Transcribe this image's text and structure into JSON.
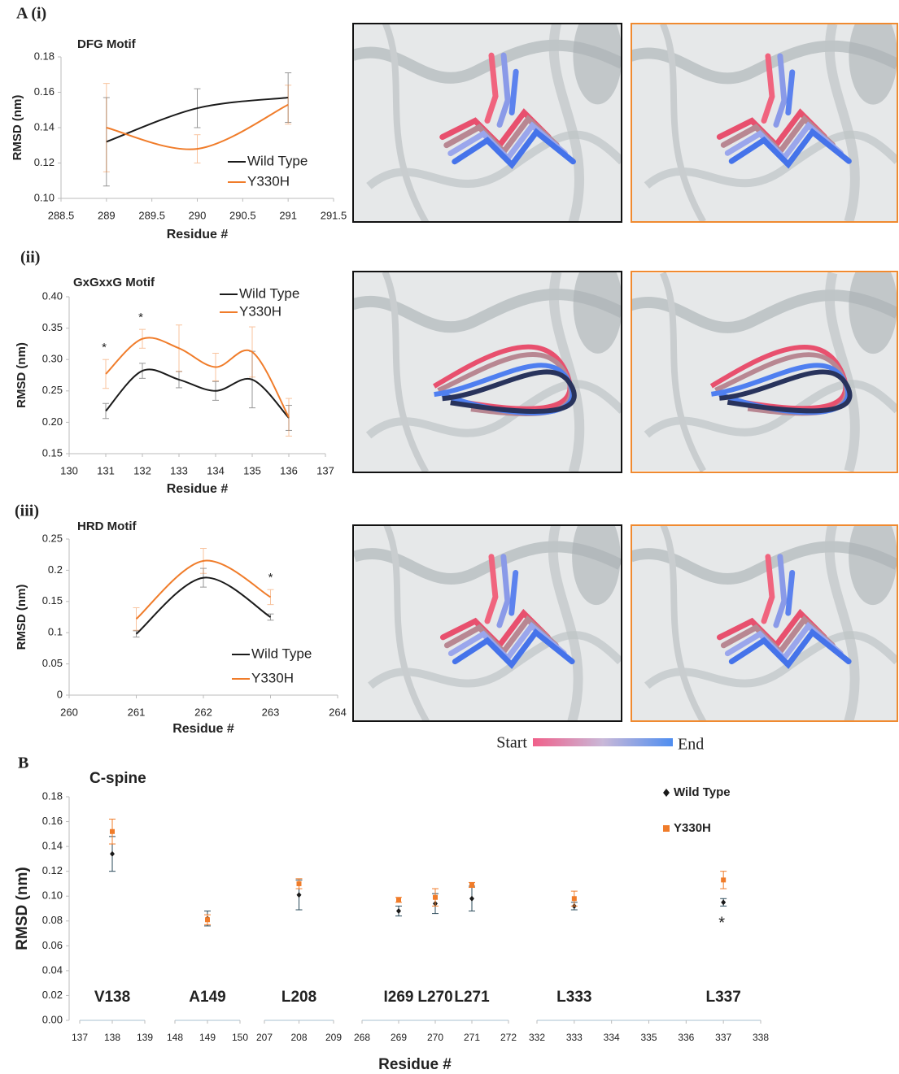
{
  "panel_labels": [
    "A (i)",
    "(ii)",
    "(iii)",
    "B"
  ],
  "colorbar": {
    "start": "Start",
    "end": "End"
  },
  "chart_data": [
    {
      "type": "line",
      "title": "DFG Motif",
      "x_label": "Residue #",
      "y_label": "RMSD (nm)",
      "xlim": [
        288.5,
        291.5
      ],
      "xticks": [
        288.5,
        289,
        289.5,
        290,
        290.5,
        291,
        291.5
      ],
      "ylim": [
        0.1,
        0.18
      ],
      "yticks": [
        {
          "value": 0.1,
          "label": "0.10"
        },
        {
          "value": 0.12,
          "label": "0.12"
        },
        {
          "value": 0.14,
          "label": "0.14"
        },
        {
          "value": 0.16,
          "label": "0.16"
        },
        {
          "value": 0.18,
          "label": "0.18"
        }
      ],
      "x": [
        289,
        290,
        291
      ],
      "legend": "lower right",
      "series": [
        {
          "name": "Wild Type",
          "color": "#1a1a1a",
          "values": [
            0.132,
            0.151,
            0.157
          ],
          "error": [
            0.025,
            0.011,
            0.014
          ]
        },
        {
          "name": "Y330H",
          "color": "#f07c2a",
          "values": [
            0.14,
            0.128,
            0.153
          ],
          "error": [
            0.025,
            0.008,
            0.011
          ]
        }
      ],
      "annotations": []
    },
    {
      "type": "line",
      "title": "GxGxxG Motif",
      "x_label": "Residue #",
      "y_label": "RMSD (nm)",
      "xlim": [
        130,
        137
      ],
      "xticks": [
        130,
        131,
        132,
        133,
        134,
        135,
        136,
        137
      ],
      "ylim": [
        0.15,
        0.4
      ],
      "yticks": [
        0.15,
        {
          "value": 0.2,
          "label": "0.20"
        },
        0.25,
        {
          "value": 0.3,
          "label": "0.30"
        },
        0.35,
        {
          "value": 0.4,
          "label": "0.40"
        }
      ],
      "x": [
        131,
        132,
        133,
        134,
        135,
        136
      ],
      "legend": "upper right",
      "series": [
        {
          "name": "Wild Type",
          "color": "#1a1a1a",
          "values": [
            0.218,
            0.282,
            0.268,
            0.25,
            0.268,
            0.207
          ],
          "error": [
            0.012,
            0.012,
            0.013,
            0.015,
            0.045,
            0.02
          ]
        },
        {
          "name": "Y330H",
          "color": "#f07c2a",
          "values": [
            0.277,
            0.333,
            0.318,
            0.288,
            0.312,
            0.208
          ],
          "error": [
            0.023,
            0.015,
            0.037,
            0.022,
            0.04,
            0.03
          ]
        }
      ],
      "annotations": [
        {
          "text": "*",
          "x": 131
        },
        {
          "text": "*",
          "x": 132
        }
      ]
    },
    {
      "type": "line",
      "title": "HRD Motif",
      "x_label": "Residue #",
      "y_label": "RMSD (nm)",
      "xlim": [
        260,
        264
      ],
      "xticks": [
        260,
        261,
        262,
        263,
        264
      ],
      "ylim": [
        0,
        0.25
      ],
      "yticks": [
        0,
        0.05,
        0.1,
        0.15,
        0.2,
        0.25
      ],
      "x": [
        261,
        262,
        263
      ],
      "legend": "lower right",
      "series": [
        {
          "name": "Wild Type",
          "color": "#1a1a1a",
          "values": [
            0.098,
            0.188,
            0.125
          ],
          "error": [
            0.005,
            0.015,
            0.005
          ]
        },
        {
          "name": "Y330H",
          "color": "#f07c2a",
          "values": [
            0.122,
            0.215,
            0.157
          ],
          "error": [
            0.018,
            0.02,
            0.012
          ]
        }
      ],
      "annotations": [
        {
          "text": "*",
          "x": 263
        }
      ]
    },
    {
      "type": "scatter",
      "title": "C-spine",
      "x_label": "Residue #",
      "y_label": "RMSD (nm)",
      "ylim": [
        0,
        0.18
      ],
      "yticks": [
        {
          "value": 0,
          "label": "0.00"
        },
        {
          "value": 0.02,
          "label": "0.02"
        },
        {
          "value": 0.04,
          "label": "0.04"
        },
        {
          "value": 0.06,
          "label": "0.06"
        },
        {
          "value": 0.08,
          "label": "0.08"
        },
        {
          "value": 0.1,
          "label": "0.10"
        },
        {
          "value": 0.12,
          "label": "0.12"
        },
        {
          "value": 0.14,
          "label": "0.14"
        },
        {
          "value": 0.16,
          "label": "0.16"
        },
        {
          "value": 0.18,
          "label": "0.18"
        }
      ],
      "x_segments": [
        {
          "xlim": [
            137,
            139
          ],
          "xticks": [
            137,
            138,
            139
          ]
        },
        {
          "xlim": [
            148,
            150
          ],
          "xticks": [
            148,
            149,
            150
          ]
        },
        {
          "xlim": [
            207,
            209
          ],
          "xticks": [
            207,
            208,
            209
          ]
        },
        {
          "xlim": [
            268,
            272
          ],
          "xticks": [
            268,
            269,
            270,
            271,
            272
          ]
        },
        {
          "xlim": [
            332,
            338
          ],
          "xticks": [
            332,
            333,
            334,
            335,
            336,
            337,
            338
          ]
        }
      ],
      "x": [
        138,
        149,
        208,
        269,
        270,
        271,
        333,
        337
      ],
      "residue_labels": [
        "V138",
        "A149",
        "L208",
        "I269",
        "L270",
        "L271",
        "L333",
        "L337"
      ],
      "legend": "upper right",
      "series": [
        {
          "name": "Wild Type",
          "color": "#1a1a1a",
          "marker": "diamond",
          "values": [
            0.134,
            0.082,
            0.101,
            0.088,
            0.094,
            0.098,
            0.092,
            0.095
          ],
          "error": [
            0.014,
            0.006,
            0.012,
            0.004,
            0.008,
            0.01,
            0.003,
            0.003
          ]
        },
        {
          "name": "Y330H",
          "color": "#f07c2a",
          "marker": "square",
          "values": [
            0.152,
            0.081,
            0.11,
            0.097,
            0.099,
            0.109,
            0.098,
            0.113
          ],
          "error": [
            0.01,
            0.004,
            0.004,
            0.002,
            0.007,
            0.002,
            0.006,
            0.007
          ]
        }
      ],
      "annotations": [
        {
          "text": "*",
          "x": 337
        }
      ]
    }
  ]
}
